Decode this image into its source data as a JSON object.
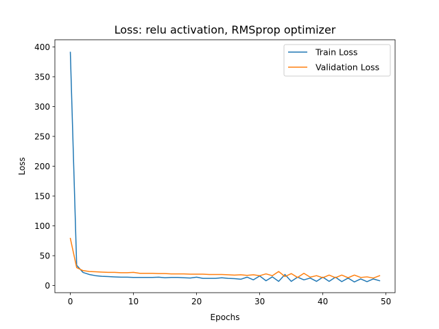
{
  "chart_data": {
    "type": "line",
    "title": "Loss: relu activation, RMSprop optimizer",
    "xlabel": "Epochs",
    "ylabel": "Loss",
    "xlim": [
      -2.45,
      51.45
    ],
    "ylim": [
      -12,
      412
    ],
    "xticks": [
      0,
      10,
      20,
      30,
      40,
      50
    ],
    "yticks": [
      0,
      50,
      100,
      150,
      200,
      250,
      300,
      350,
      400
    ],
    "grid": false,
    "legend_position": "upper right",
    "x": [
      0,
      1,
      2,
      3,
      4,
      5,
      6,
      7,
      8,
      9,
      10,
      11,
      12,
      13,
      14,
      15,
      16,
      17,
      18,
      19,
      20,
      21,
      22,
      23,
      24,
      25,
      26,
      27,
      28,
      29,
      30,
      31,
      32,
      33,
      34,
      35,
      36,
      37,
      38,
      39,
      40,
      41,
      42,
      43,
      44,
      45,
      46,
      47,
      48,
      49
    ],
    "series": [
      {
        "name": "Train Loss",
        "color": "#1f77b4",
        "values": [
          391,
          34,
          22,
          18.5,
          16.5,
          15.5,
          15,
          14.5,
          14,
          14,
          13.5,
          13.5,
          13.5,
          13.5,
          14,
          13,
          13.5,
          13.5,
          13,
          12.5,
          14,
          12,
          12,
          12,
          13,
          12,
          11.5,
          10.5,
          14,
          9.5,
          16,
          8,
          14.5,
          7,
          18.5,
          7,
          14,
          9.5,
          12.5,
          7,
          14,
          7,
          14,
          6.5,
          12.5,
          6,
          11,
          6.5,
          11,
          8
        ]
      },
      {
        "name": "Validation Loss",
        "color": "#ff7f0e",
        "values": [
          79,
          30,
          25,
          23.5,
          23,
          22.5,
          22,
          22,
          21.5,
          21.5,
          22,
          20.5,
          20.5,
          20.5,
          20,
          20,
          19.5,
          19.5,
          19.5,
          19,
          19,
          19,
          18.5,
          18.5,
          18.5,
          18,
          17.5,
          18,
          17,
          18,
          16.5,
          19.5,
          16.5,
          23.5,
          15,
          20,
          13.5,
          20.5,
          14,
          16.5,
          13,
          17.5,
          13,
          17.5,
          13,
          17.5,
          13.5,
          14.5,
          12.5,
          16.5
        ]
      }
    ]
  }
}
